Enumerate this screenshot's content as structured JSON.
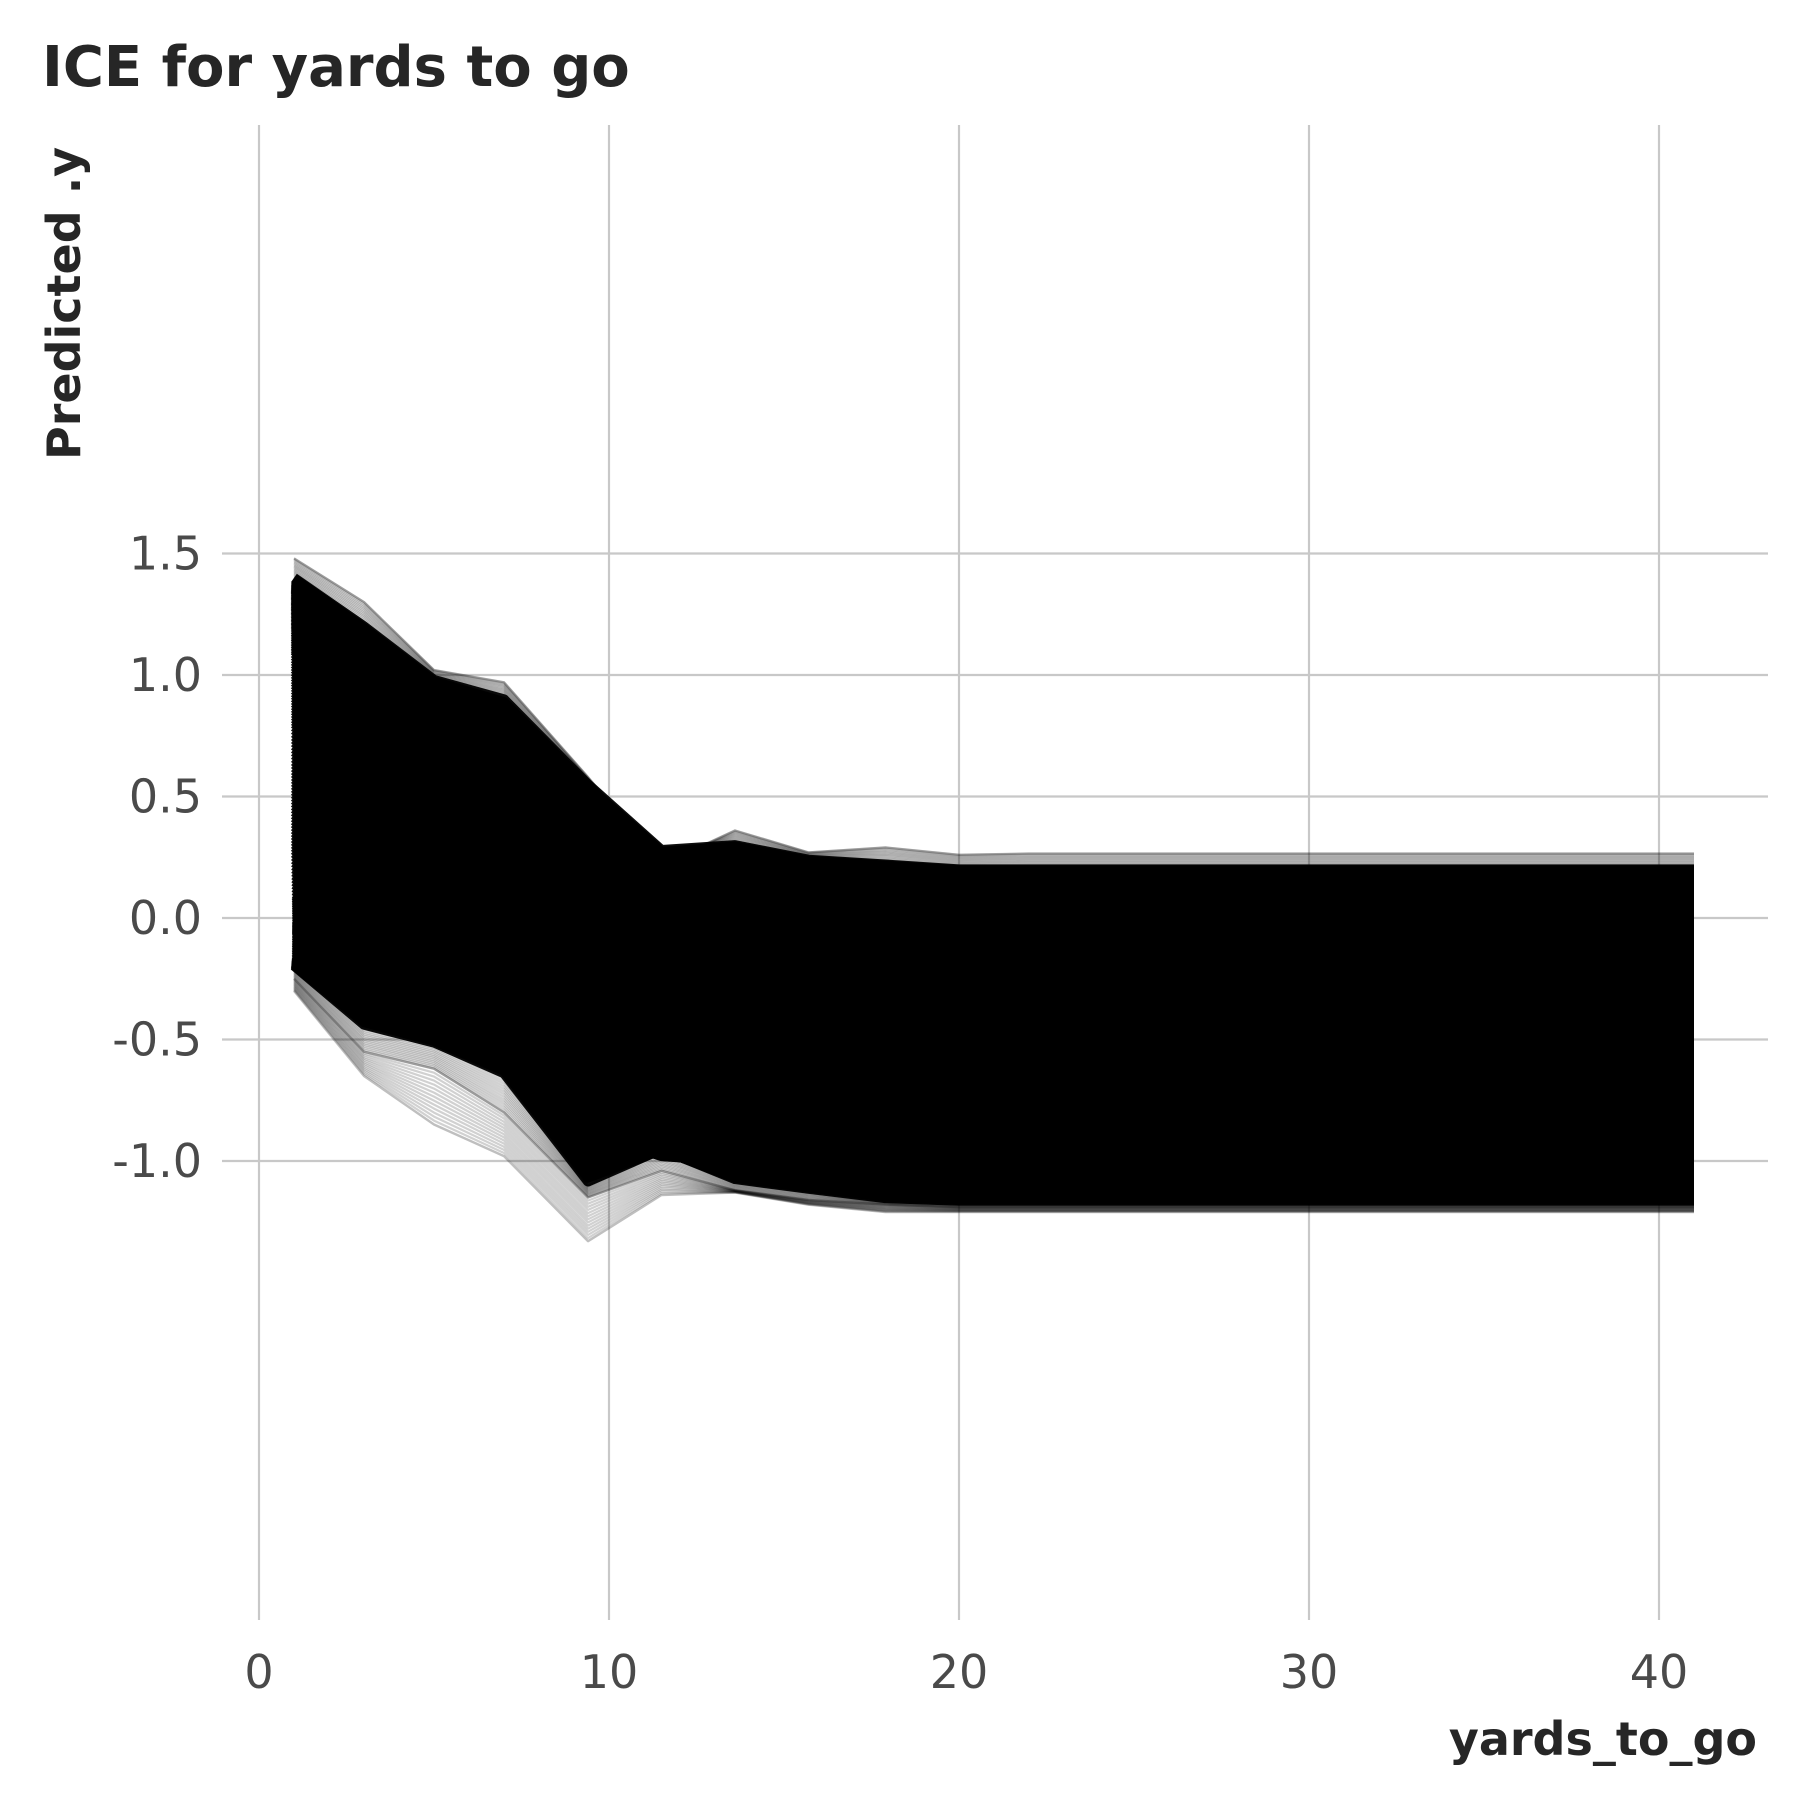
{
  "chart_data": {
    "type": "line",
    "title": "ICE for yards to go",
    "xlabel": "yards_to_go",
    "ylabel": "Predicted .y",
    "xlim": [
      -1,
      42.5
    ],
    "ylim": [
      -1.45,
      1.62
    ],
    "x_ticks": [
      0,
      10,
      20,
      30,
      40
    ],
    "y_ticks": [
      1.5,
      1.0,
      0.5,
      0.0,
      -0.5,
      -1.0
    ],
    "x_tick_labels": [
      "0",
      "10",
      "20",
      "30",
      "40"
    ],
    "y_tick_labels": [
      "1.5",
      "1.0",
      "0.5",
      "0.0",
      "-0.5",
      "-1.0"
    ],
    "grid": true,
    "line_color": "#000000",
    "grid_color": "#c8c8c8",
    "x": [
      1,
      3,
      5,
      7,
      9.4,
      11.5,
      13.6,
      15.7,
      17.9,
      20,
      22,
      41
    ],
    "series": [
      {
        "values": [
          1.48,
          1.3,
          1.02,
          0.97,
          0.58,
          0.22,
          0.36,
          0.27,
          0.29,
          0.26,
          0.265,
          0.265
        ]
      },
      {
        "values": [
          1.4,
          1.2,
          0.98,
          0.9,
          0.55,
          0.28,
          0.3,
          0.24,
          0.22,
          0.2,
          0.2,
          0.2
        ]
      },
      {
        "values": [
          1.35,
          1.1,
          0.88,
          0.74,
          0.42,
          0.18,
          0.22,
          0.17,
          0.16,
          0.15,
          0.15,
          0.15
        ]
      },
      {
        "values": [
          1.28,
          1.03,
          0.82,
          0.7,
          0.38,
          0.16,
          0.2,
          0.15,
          0.13,
          0.13,
          0.13,
          0.13
        ]
      },
      {
        "values": [
          1.2,
          0.96,
          0.76,
          0.62,
          0.3,
          0.1,
          0.14,
          0.1,
          0.08,
          0.08,
          0.08,
          0.08
        ]
      },
      {
        "values": [
          1.1,
          0.86,
          0.65,
          0.52,
          0.18,
          -0.02,
          0.02,
          -0.02,
          -0.04,
          -0.05,
          -0.05,
          -0.05
        ]
      },
      {
        "values": [
          0.95,
          0.72,
          0.5,
          0.36,
          0.02,
          -0.18,
          -0.14,
          -0.18,
          -0.2,
          -0.21,
          -0.21,
          -0.21
        ]
      },
      {
        "values": [
          0.8,
          0.58,
          0.36,
          0.22,
          -0.12,
          -0.32,
          -0.28,
          -0.33,
          -0.35,
          -0.36,
          -0.36,
          -0.36
        ]
      },
      {
        "values": [
          0.62,
          0.4,
          0.18,
          0.04,
          -0.3,
          -0.48,
          -0.45,
          -0.5,
          -0.52,
          -0.53,
          -0.53,
          -0.53
        ]
      },
      {
        "values": [
          0.45,
          0.22,
          0.0,
          -0.12,
          -0.45,
          -0.62,
          -0.6,
          -0.64,
          -0.66,
          -0.67,
          -0.67,
          -0.67
        ]
      },
      {
        "values": [
          0.28,
          0.05,
          -0.12,
          -0.25,
          -0.58,
          -0.72,
          -0.74,
          -0.77,
          -0.79,
          -0.8,
          -0.8,
          -0.8
        ]
      },
      {
        "values": [
          0.1,
          -0.05,
          -0.18,
          -0.24,
          -0.6,
          -0.74,
          -0.82,
          -0.87,
          -0.9,
          -0.92,
          -0.92,
          -0.92
        ]
      },
      {
        "values": [
          0.0,
          -0.12,
          -0.22,
          -0.28,
          -0.68,
          -0.8,
          -0.86,
          -0.9,
          -0.93,
          -0.95,
          -0.95,
          -0.95
        ]
      },
      {
        "values": [
          -0.05,
          -0.18,
          -0.3,
          -0.36,
          -0.75,
          -0.9,
          -0.94,
          -0.98,
          -1.0,
          -1.02,
          -1.02,
          -1.02
        ]
      },
      {
        "values": [
          -0.15,
          -0.3,
          -0.42,
          -0.5,
          -0.88,
          -0.98,
          -1.0,
          -1.04,
          -1.06,
          -1.08,
          -1.08,
          -1.08
        ]
      },
      {
        "values": [
          -0.2,
          -0.45,
          -0.52,
          -0.65,
          -1.1,
          -0.95,
          -1.08,
          -1.12,
          -1.16,
          -1.17,
          -1.17,
          -1.17
        ]
      },
      {
        "values": [
          -0.25,
          -0.55,
          -0.62,
          -0.8,
          -1.15,
          -1.04,
          -1.12,
          -1.16,
          -1.18,
          -1.19,
          -1.19,
          -1.19
        ]
      },
      {
        "values": [
          -0.3,
          -0.65,
          -0.85,
          -0.98,
          -1.33,
          -1.14,
          -1.13,
          -1.18,
          -1.21,
          -1.21,
          -1.21,
          -1.21
        ]
      }
    ]
  }
}
